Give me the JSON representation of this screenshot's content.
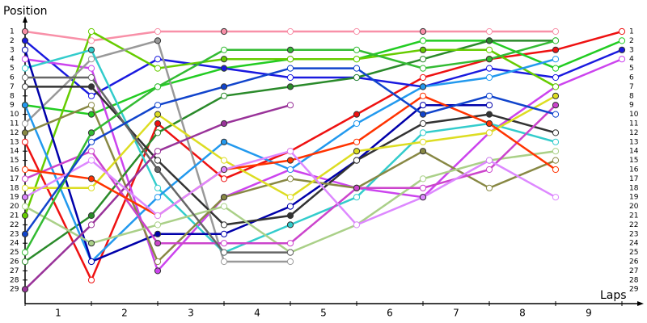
{
  "chart_data": {
    "type": "line",
    "y_label": "Position",
    "x_label": "Laps",
    "x": [
      0,
      1,
      2,
      3,
      4,
      5,
      6,
      7,
      8,
      9
    ],
    "xlim": [
      0,
      9.25
    ],
    "ylim": [
      30.5,
      0
    ],
    "xticks": [
      {
        "value": 0.5,
        "label": "1"
      },
      {
        "value": 1.5,
        "label": "2"
      },
      {
        "value": 2.5,
        "label": "3"
      },
      {
        "value": 3.5,
        "label": "4"
      },
      {
        "value": 4.5,
        "label": "5"
      },
      {
        "value": 5.5,
        "label": "6"
      },
      {
        "value": 6.5,
        "label": "7"
      },
      {
        "value": 7.5,
        "label": "8"
      },
      {
        "value": 8.5,
        "label": "9"
      }
    ],
    "yticks": [
      1,
      2,
      3,
      4,
      5,
      6,
      7,
      8,
      9,
      10,
      11,
      12,
      13,
      14,
      15,
      16,
      17,
      18,
      19,
      20,
      21,
      22,
      23,
      24,
      25,
      26,
      27,
      28,
      29
    ],
    "series": [
      {
        "color": "#f890a8",
        "values": [
          1,
          2,
          1,
          1,
          1,
          1,
          1,
          1,
          1,
          null
        ]
      },
      {
        "color": "#ee1111",
        "values": [
          13,
          28,
          11,
          17,
          14,
          10,
          6,
          4,
          3,
          1
        ]
      },
      {
        "color": "#22cc22",
        "values": [
          9,
          10,
          7,
          5,
          4,
          4,
          2,
          2,
          5,
          2
        ]
      },
      {
        "color": "#1a1adf",
        "values": [
          2,
          8,
          4,
          5,
          6,
          6,
          7,
          5,
          6,
          3
        ]
      },
      {
        "color": "#cc44ee",
        "values": [
          4,
          5,
          27,
          19,
          16,
          18,
          19,
          12,
          7,
          4
        ]
      },
      {
        "color": "#2a8a2a",
        "values": [
          26,
          21,
          12,
          8,
          7,
          6,
          4,
          2,
          2,
          null
        ]
      },
      {
        "color": "#66cc00",
        "values": [
          21,
          1,
          5,
          4,
          4,
          4,
          3,
          3,
          7,
          null
        ]
      },
      {
        "color": "#999999",
        "values": [
          11,
          4,
          2,
          26,
          26,
          null,
          null,
          null,
          null,
          null
        ]
      },
      {
        "color": "#33cccc",
        "values": [
          5,
          3,
          18,
          25,
          22,
          19,
          12,
          11,
          13,
          null
        ]
      },
      {
        "color": "#2299ee",
        "values": [
          9,
          26,
          19,
          13,
          16,
          11,
          7,
          6,
          4,
          null
        ]
      },
      {
        "color": "#0000aa",
        "values": [
          3,
          26,
          23,
          23,
          20,
          15,
          9,
          9,
          null,
          null
        ]
      },
      {
        "color": "#333333",
        "values": [
          7,
          7,
          15,
          22,
          21,
          15,
          11,
          10,
          12,
          null
        ]
      },
      {
        "color": "#888844",
        "values": [
          12,
          9,
          26,
          19,
          17,
          18,
          14,
          18,
          15,
          null
        ]
      },
      {
        "color": "#dddd22",
        "values": [
          18,
          18,
          10,
          15,
          19,
          14,
          13,
          12,
          8,
          null
        ]
      },
      {
        "color": "#aad088",
        "values": [
          20,
          24,
          22,
          20,
          25,
          22,
          17,
          15,
          14,
          null
        ]
      },
      {
        "color": "#993399",
        "values": [
          29,
          22,
          14,
          11,
          9,
          null,
          null,
          null,
          null,
          null
        ]
      },
      {
        "color": "#cc44cc",
        "values": [
          17,
          14,
          24,
          24,
          24,
          18,
          18,
          16,
          9,
          null
        ]
      },
      {
        "color": "#ff3300",
        "values": [
          16,
          17,
          21,
          16,
          15,
          13,
          8,
          11,
          16,
          null
        ]
      },
      {
        "color": "#dd88ff",
        "values": [
          19,
          15,
          21,
          16,
          14,
          22,
          19,
          15,
          19,
          null
        ]
      },
      {
        "color": "#666666",
        "values": [
          6,
          6,
          16,
          25,
          25,
          null,
          null,
          null,
          null,
          null
        ]
      },
      {
        "color": "#33bb33",
        "values": [
          25,
          12,
          7,
          3,
          3,
          3,
          5,
          4,
          2,
          null
        ]
      },
      {
        "color": "#1144cc",
        "values": [
          23,
          13,
          9,
          7,
          5,
          5,
          10,
          8,
          10,
          null
        ]
      }
    ]
  }
}
